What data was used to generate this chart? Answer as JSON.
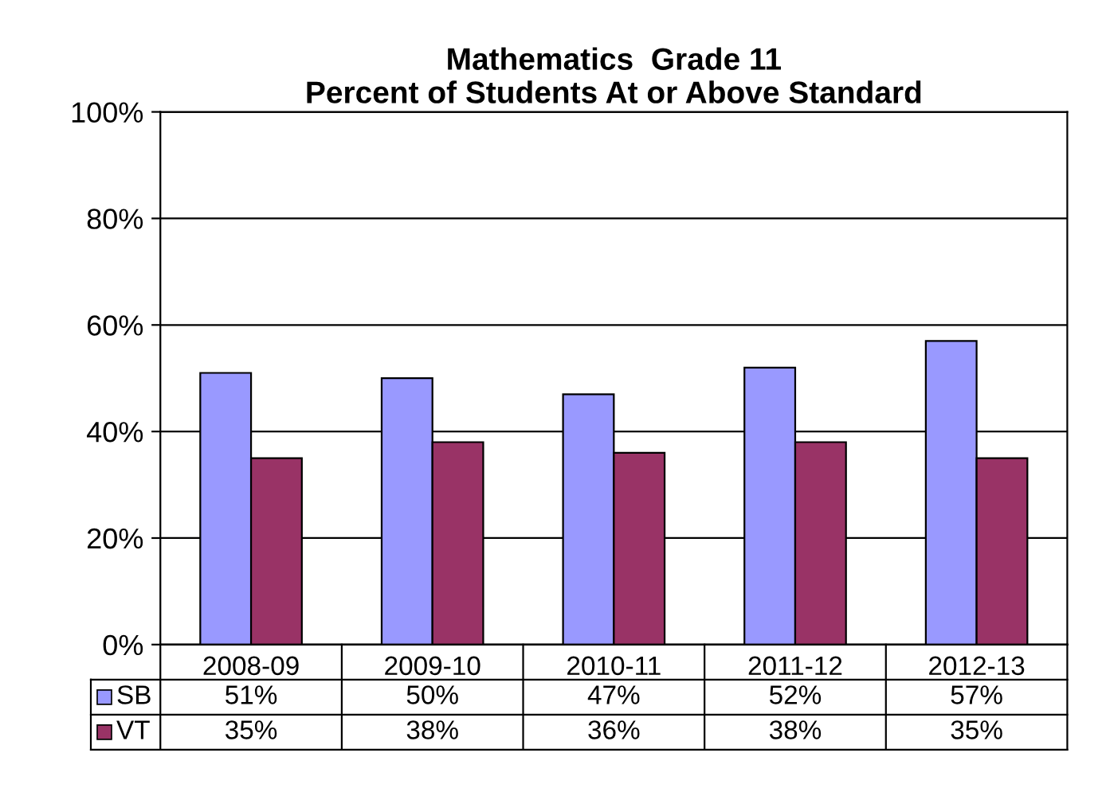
{
  "chart_data": {
    "type": "bar",
    "title": "Mathematics  Grade 11\nPercent of Students At or Above Standard",
    "categories": [
      "2008-09",
      "2009-10",
      "2010-11",
      "2011-12",
      "2012-13"
    ],
    "series": [
      {
        "name": "SB",
        "color": "#9999ff",
        "values": [
          51,
          50,
          47,
          52,
          57
        ],
        "value_labels": [
          "51%",
          "50%",
          "47%",
          "52%",
          "57%"
        ]
      },
      {
        "name": "VT",
        "color": "#993366",
        "values": [
          35,
          38,
          36,
          38,
          35
        ],
        "value_labels": [
          "35%",
          "38%",
          "36%",
          "38%",
          "35%"
        ]
      }
    ],
    "ylim": [
      0,
      100
    ],
    "yticks": [
      {
        "value": 0,
        "label": "0%"
      },
      {
        "value": 20,
        "label": "20%"
      },
      {
        "value": 40,
        "label": "40%"
      },
      {
        "value": 60,
        "label": "60%"
      },
      {
        "value": 80,
        "label": "80%"
      },
      {
        "value": 100,
        "label": "100%"
      }
    ],
    "grid": "y",
    "legend": "bottom"
  }
}
